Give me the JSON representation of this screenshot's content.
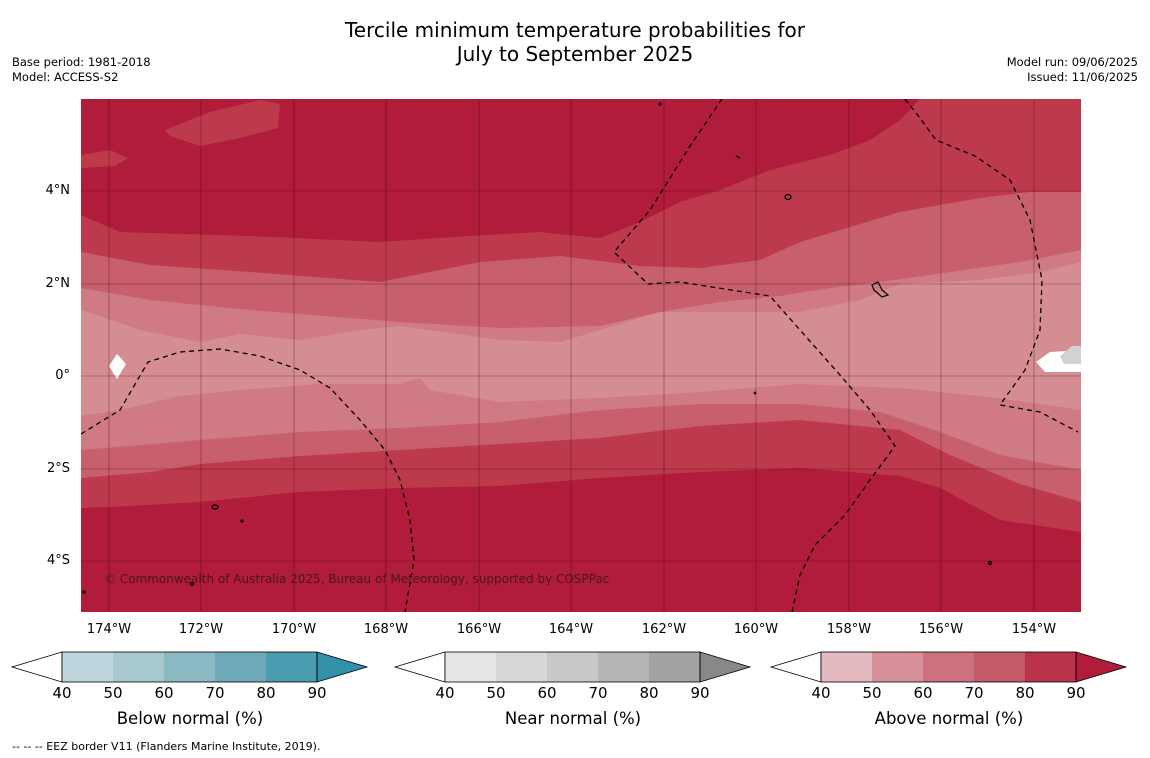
{
  "title": {
    "line1": "Tercile minimum temperature probabilities for",
    "line2": "July to September 2025"
  },
  "meta_left": {
    "base_period": "Base period: 1981-2018",
    "model": "Model: ACCESS-S2"
  },
  "meta_right": {
    "model_run": "Model run: 09/06/2025",
    "issued": "Issued: 11/06/2025"
  },
  "axes": {
    "lat_labels": [
      "4°N",
      "2°N",
      "0°",
      "2°S",
      "4°S"
    ],
    "lat_values": [
      4,
      2,
      0,
      -2,
      -4
    ],
    "lon_labels": [
      "174°W",
      "172°W",
      "170°W",
      "168°W",
      "166°W",
      "164°W",
      "162°W",
      "160°W",
      "158°W",
      "156°W",
      "154°W"
    ],
    "lon_values": [
      -174,
      -172,
      -170,
      -168,
      -166,
      -164,
      -162,
      -160,
      -158,
      -156,
      -154
    ],
    "lon_range": [
      -174.6,
      -153.0
    ],
    "lat_range": [
      -5.1,
      5.9
    ]
  },
  "credits": "© Commonwealth of Australia 2025, Bureau of Meteorology, supported by COSPPac",
  "colorbars": [
    {
      "label": "Below normal (%)",
      "ticks": [
        "40",
        "50",
        "60",
        "70",
        "80",
        "90"
      ],
      "colors": [
        "#bdd6dd",
        "#a7c8ce",
        "#8ab8c3",
        "#6eaab8",
        "#4a9db0",
        "#3291a6"
      ]
    },
    {
      "label": "Near normal (%)",
      "ticks": [
        "40",
        "50",
        "60",
        "70",
        "80",
        "90"
      ],
      "colors": [
        "#e6e6e6",
        "#d8d8d8",
        "#c8c8c8",
        "#b6b6b6",
        "#a2a2a2",
        "#888888"
      ]
    },
    {
      "label": "Above normal (%)",
      "ticks": [
        "40",
        "50",
        "60",
        "70",
        "80",
        "90"
      ],
      "colors": [
        "#e4b9c0",
        "#d8919b",
        "#cc717d",
        "#c35a68",
        "#b93449",
        "#b01c3a"
      ]
    }
  ],
  "footnote": "--  --  -- EEZ border V11 (Flanders Marine Institute, 2019).",
  "map_colors": {
    "p90": "#b01c3a",
    "p80": "#bc3a4c",
    "p70": "#c7606c",
    "p60": "#d58d94"
  }
}
